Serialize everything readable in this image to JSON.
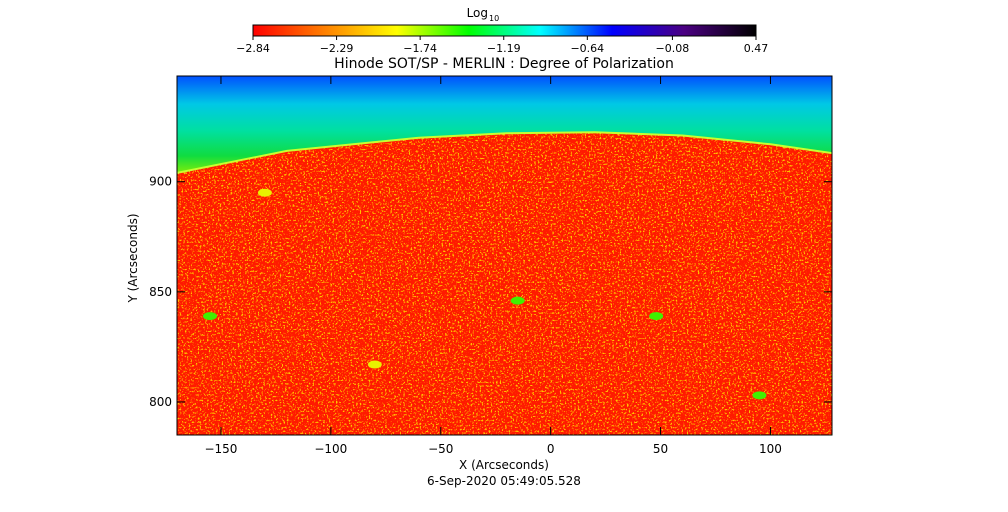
{
  "chart_data": {
    "type": "heatmap",
    "title": "Hinode SOT/SP - MERLIN : Degree of Polarization",
    "subtitle": "6-Sep-2020 05:49:05.528",
    "xlabel": "X (Arcseconds)",
    "ylabel": "Y (Arcseconds)",
    "xlim": [
      -170,
      128
    ],
    "ylim": [
      785,
      948
    ],
    "x_ticks": [
      -150,
      -100,
      -50,
      0,
      50,
      100
    ],
    "y_ticks": [
      800,
      850,
      900
    ],
    "x_tick_labels": [
      "−150",
      "−100",
      "−50",
      "0",
      "50",
      "100"
    ],
    "y_tick_labels": [
      "800",
      "850",
      "900"
    ],
    "limb": {
      "x_arcsec": [
        -170,
        -120,
        -60,
        -20,
        20,
        60,
        100,
        128
      ],
      "y_arcsec": [
        904,
        914,
        920,
        922,
        922.5,
        921,
        917,
        913
      ]
    },
    "regions": [
      {
        "name": "sky above limb",
        "log10_value": -1.2
      },
      {
        "name": "solar disk",
        "log10_value": -2.8
      }
    ],
    "bright_features": [
      {
        "x": -155,
        "y": 839,
        "log10_value": -1.6
      },
      {
        "x": -15,
        "y": 846,
        "log10_value": -1.6
      },
      {
        "x": 48,
        "y": 839,
        "log10_value": -1.6
      },
      {
        "x": 95,
        "y": 803,
        "log10_value": -1.8
      },
      {
        "x": -130,
        "y": 895,
        "log10_value": -2.0
      },
      {
        "x": -80,
        "y": 817,
        "log10_value": -2.0
      }
    ],
    "colorbar": {
      "label": "Log",
      "label_subscript": "10",
      "scale": "log10",
      "range": [
        -2.84,
        0.47
      ],
      "tick_values": [
        -2.84,
        -2.29,
        -1.74,
        -1.19,
        -0.64,
        -0.08,
        0.47
      ],
      "tick_labels": [
        "−2.84",
        "−2.29",
        "−1.74",
        "−1.19",
        "−0.64",
        "−0.08",
        "0.47"
      ],
      "colormap": [
        "#ff0000",
        "#ff8000",
        "#ffff00",
        "#00ff00",
        "#00ffff",
        "#0000ff",
        "#4b0082",
        "#000000"
      ]
    }
  }
}
